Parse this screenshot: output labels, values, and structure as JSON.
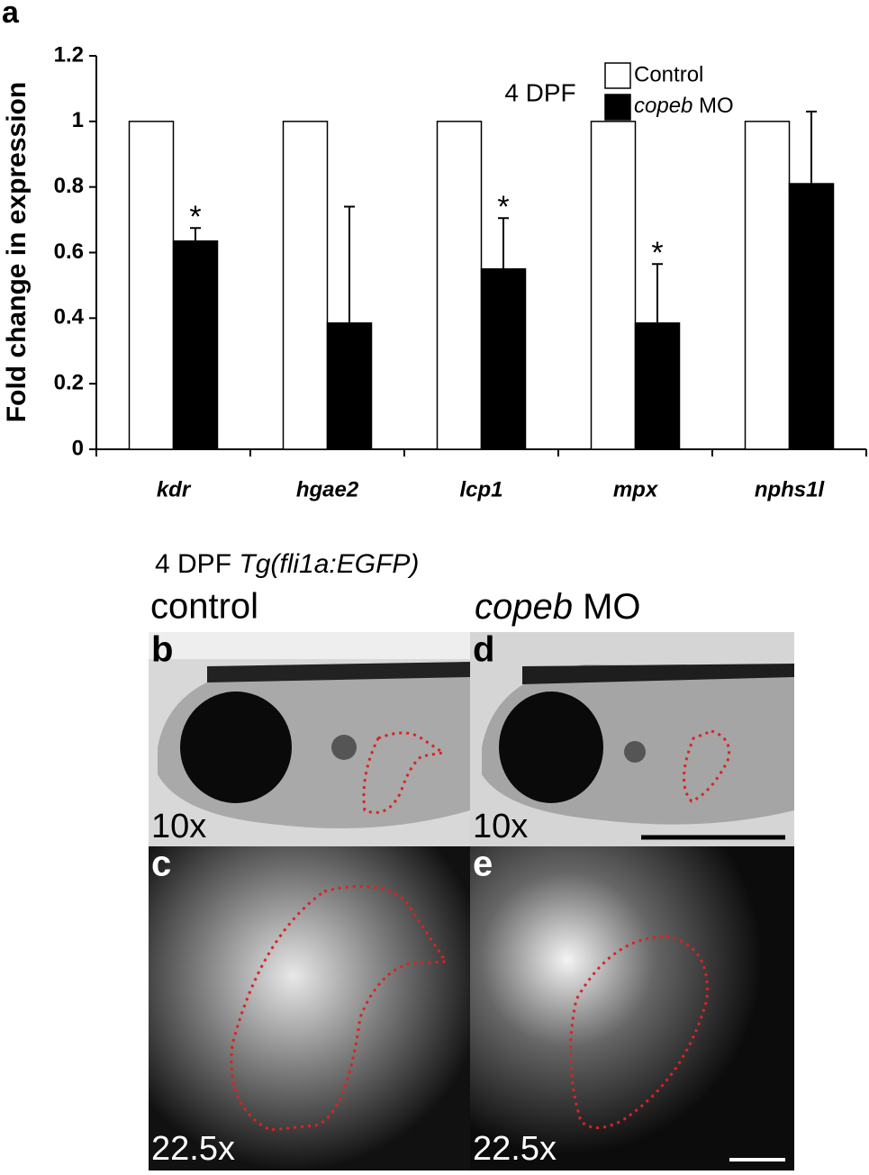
{
  "chart_data": {
    "type": "bar",
    "panel_label": "a",
    "annotation": "4 DPF",
    "y_label": "Fold change in expression",
    "categories": [
      "kdr",
      "hgae2",
      "lcp1",
      "mpx",
      "nphs1l"
    ],
    "series": [
      {
        "name": "Control",
        "color": "#ffffff",
        "values": [
          1,
          1,
          1,
          1,
          1
        ]
      },
      {
        "name": "copeb MO",
        "color": "#000000",
        "values": [
          0.635,
          0.385,
          0.55,
          0.385,
          0.81
        ],
        "errors": [
          0.04,
          0.355,
          0.155,
          0.18,
          0.22
        ]
      }
    ],
    "significance": [
      "*",
      null,
      "*",
      "*",
      null
    ],
    "ylim": [
      0,
      1.2
    ],
    "yticks": [
      0,
      0.2,
      0.4,
      0.6,
      0.8,
      1,
      1.2
    ],
    "grid": false
  },
  "figure_panels": {
    "title_prefix": "4 DPF",
    "title_gene": "Tg(fli1a:EGFP)",
    "columns": [
      "control",
      "copeb MO"
    ],
    "panels": [
      {
        "label": "b",
        "magnification": "10x"
      },
      {
        "label": "c",
        "magnification": "22.5x"
      },
      {
        "label": "d",
        "magnification": "10x"
      },
      {
        "label": "e",
        "magnification": "22.5x"
      }
    ]
  }
}
